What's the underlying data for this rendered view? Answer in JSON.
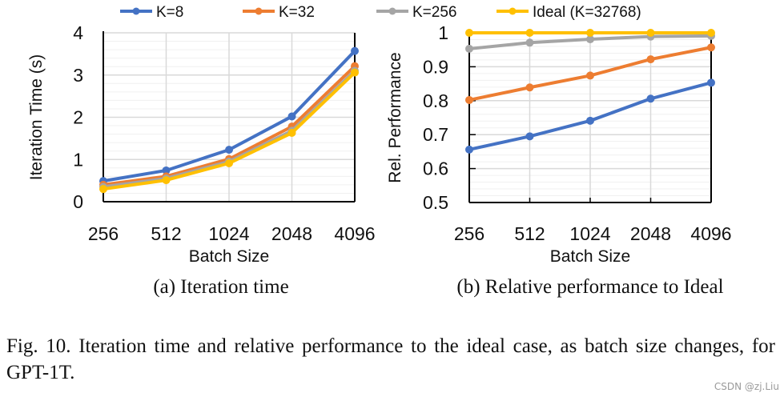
{
  "legend": [
    {
      "name": "K=8",
      "color": "#4472C4"
    },
    {
      "name": "K=32",
      "color": "#ED7D31"
    },
    {
      "name": "K=256",
      "color": "#A5A5A5"
    },
    {
      "name": "Ideal (K=32768)",
      "color": "#FFC000"
    }
  ],
  "chart_data": [
    {
      "type": "line",
      "subcaption": "(a) Iteration time",
      "xlabel": "Batch Size",
      "ylabel": "Iteration Time (s)",
      "categories": [
        "256",
        "512",
        "1024",
        "2048",
        "4096"
      ],
      "ylim": [
        0,
        4
      ],
      "yticks": [
        "0",
        "1",
        "2",
        "3",
        "4"
      ],
      "grid": true,
      "legend_placement": "top",
      "series": [
        {
          "name": "K=8",
          "values": [
            0.49,
            0.74,
            1.23,
            2.02,
            3.57
          ]
        },
        {
          "name": "K=32",
          "values": [
            0.4,
            0.6,
            1.01,
            1.78,
            3.21
          ]
        },
        {
          "name": "K=256",
          "values": [
            0.35,
            0.55,
            0.95,
            1.68,
            3.1
          ]
        },
        {
          "name": "Ideal (K=32768)",
          "values": [
            0.3,
            0.51,
            0.91,
            1.63,
            3.06
          ]
        }
      ]
    },
    {
      "type": "line",
      "subcaption": "(b) Relative performance to Ideal",
      "xlabel": "Batch Size",
      "ylabel": "Rel. Performance",
      "categories": [
        "256",
        "512",
        "1024",
        "2048",
        "4096"
      ],
      "ylim": [
        0.5,
        1
      ],
      "yticks": [
        "0.5",
        "0.6",
        "0.7",
        "0.8",
        "0.9",
        "1"
      ],
      "grid": true,
      "legend_placement": "top",
      "series": [
        {
          "name": "K=8",
          "values": [
            0.656,
            0.695,
            0.741,
            0.806,
            0.853
          ]
        },
        {
          "name": "K=32",
          "values": [
            0.802,
            0.839,
            0.874,
            0.922,
            0.957
          ]
        },
        {
          "name": "K=256",
          "values": [
            0.953,
            0.971,
            0.981,
            0.989,
            0.991
          ]
        },
        {
          "name": "Ideal (K=32768)",
          "values": [
            1,
            1,
            1,
            1,
            1
          ]
        }
      ]
    }
  ],
  "caption": "Fig. 10.  Iteration time and relative performance to the ideal case, as batch size changes, for GPT-1T.",
  "watermark": "CSDN @zj.Liu"
}
